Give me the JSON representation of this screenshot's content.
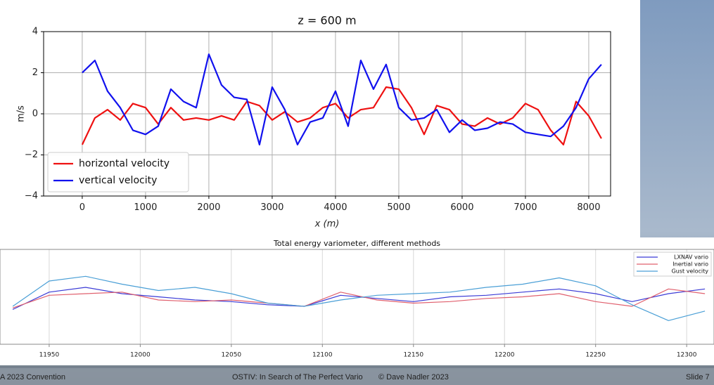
{
  "chart_data": [
    {
      "type": "line",
      "title": "z = 600 m",
      "xlabel": "x (m)",
      "ylabel": "m/s",
      "x": [
        0,
        200,
        400,
        600,
        800,
        1000,
        1200,
        1400,
        1600,
        1800,
        2000,
        2200,
        2400,
        2600,
        2800,
        3000,
        3200,
        3400,
        3600,
        3800,
        4000,
        4200,
        4400,
        4600,
        4800,
        5000,
        5200,
        5400,
        5600,
        5800,
        6000,
        6200,
        6400,
        6600,
        6800,
        7000,
        7200,
        7400,
        7600,
        7800,
        8000,
        8200
      ],
      "series": [
        {
          "name": "horizontal velocity",
          "color": "#ee1111",
          "values": [
            -1.5,
            -0.2,
            0.2,
            -0.3,
            0.5,
            0.3,
            -0.5,
            0.3,
            -0.3,
            -0.2,
            -0.3,
            -0.1,
            -0.3,
            0.6,
            0.4,
            -0.3,
            0.1,
            -0.4,
            -0.2,
            0.3,
            0.5,
            -0.2,
            0.2,
            0.3,
            1.3,
            1.2,
            0.3,
            -1.0,
            0.4,
            0.2,
            -0.5,
            -0.6,
            -0.2,
            -0.5,
            -0.2,
            0.5,
            0.2,
            -0.8,
            -1.5,
            0.6,
            -0.1,
            -1.2
          ]
        },
        {
          "name": "vertical velocity",
          "color": "#1111ee",
          "values": [
            2.0,
            2.6,
            1.1,
            0.3,
            -0.8,
            -1.0,
            -0.6,
            1.2,
            0.6,
            0.3,
            2.9,
            1.4,
            0.8,
            0.7,
            -1.5,
            1.3,
            0.2,
            -1.5,
            -0.4,
            -0.2,
            1.1,
            -0.6,
            2.6,
            1.2,
            2.4,
            0.3,
            -0.3,
            -0.2,
            0.2,
            -0.9,
            -0.3,
            -0.8,
            -0.7,
            -0.4,
            -0.5,
            -0.9,
            -1.0,
            -1.1,
            -0.6,
            0.3,
            1.7,
            2.4
          ]
        }
      ],
      "xlim": [
        -610,
        8345
      ],
      "ylim": [
        -4,
        4
      ],
      "xticks": [
        0,
        1000,
        2000,
        3000,
        4000,
        5000,
        6000,
        7000,
        8000
      ],
      "yticks": [
        {
          "value": -4,
          "label": "−4"
        },
        {
          "value": -2,
          "label": "−2"
        },
        0,
        2,
        4
      ],
      "grid": true,
      "legend": "lower left"
    },
    {
      "type": "line",
      "title": "Total energy variometer, different methods",
      "x": [
        11930,
        11950,
        11970,
        11990,
        12010,
        12030,
        12050,
        12070,
        12090,
        12110,
        12130,
        12150,
        12170,
        12190,
        12210,
        12230,
        12250,
        12270,
        12290,
        12310
      ],
      "series": [
        {
          "name": "LXNAV vario",
          "color": "#3b3bd6",
          "values": [
            -0.8,
            0.3,
            0.6,
            0.2,
            0.0,
            -0.2,
            -0.3,
            -0.5,
            -0.6,
            0.1,
            -0.1,
            -0.3,
            0.0,
            0.1,
            0.3,
            0.5,
            0.2,
            -0.3,
            0.2,
            0.5
          ]
        },
        {
          "name": "Inertial vario",
          "color": "#e0606e",
          "values": [
            -0.7,
            0.1,
            0.2,
            0.3,
            -0.2,
            -0.3,
            -0.2,
            -0.4,
            -0.6,
            0.3,
            -0.2,
            -0.4,
            -0.3,
            -0.1,
            0.0,
            0.2,
            -0.3,
            -0.6,
            0.5,
            0.2
          ]
        },
        {
          "name": "Gust velocity",
          "color": "#4a9fd6",
          "values": [
            -0.6,
            1.0,
            1.3,
            0.8,
            0.4,
            0.6,
            0.2,
            -0.4,
            -0.6,
            -0.2,
            0.1,
            0.2,
            0.3,
            0.6,
            0.8,
            1.2,
            0.7,
            -0.5,
            -1.5,
            -0.9
          ]
        }
      ],
      "xlim": [
        11923,
        12315
      ],
      "ylim": [
        -3,
        3
      ],
      "xticks": [
        11950,
        12000,
        12050,
        12100,
        12150,
        12200,
        12250,
        12300
      ],
      "grid": true,
      "legend": "upper right"
    }
  ],
  "footer": {
    "left": "A 2023 Convention",
    "center": "OSTIV: In Search of The Perfect Vario",
    "copyright": "© Dave Nadler 2023",
    "right": "Slide 7"
  }
}
